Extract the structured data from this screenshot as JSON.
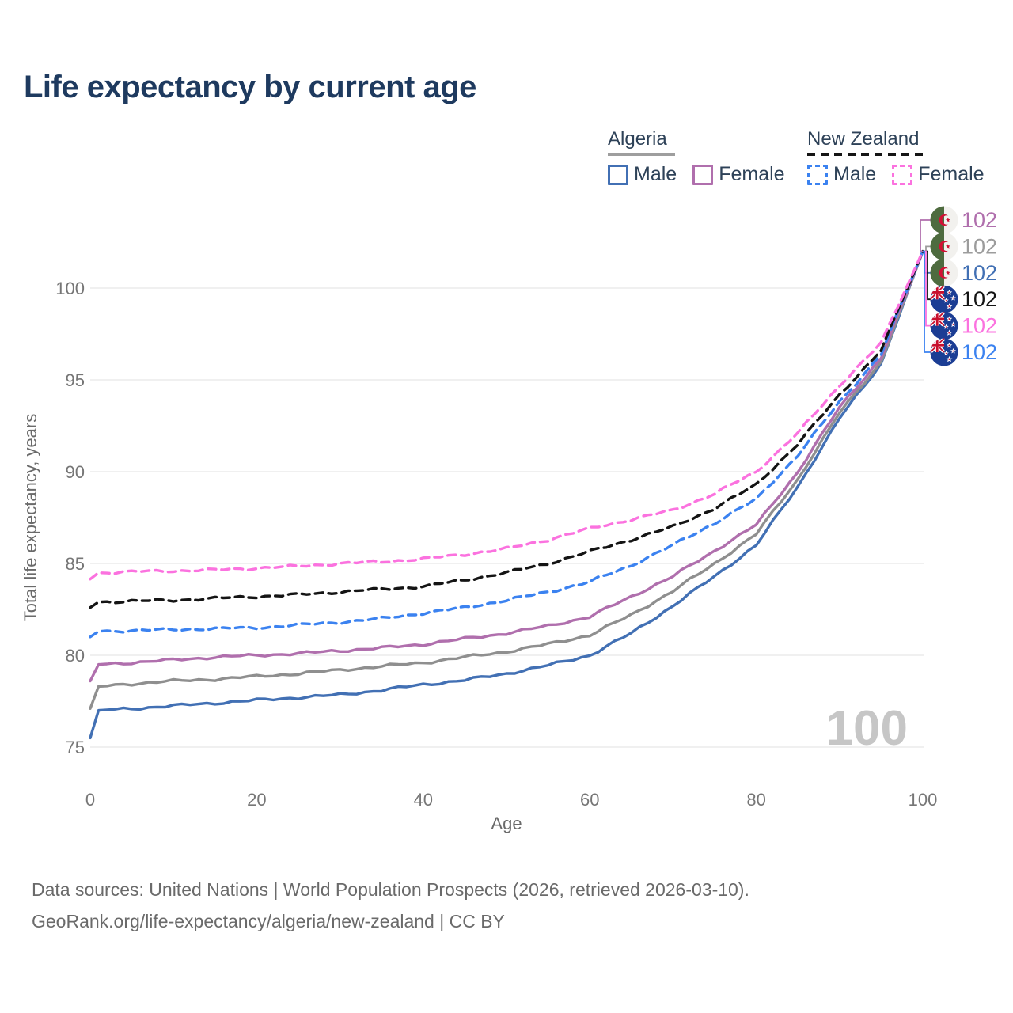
{
  "title": "Life expectancy by current age",
  "legend": {
    "groups": [
      {
        "label": "Algeria",
        "line_style": "solid",
        "underline_color": "#9e9e9e",
        "items": [
          {
            "label": "Male",
            "color": "#4270b4",
            "dash": false
          },
          {
            "label": "Female",
            "color": "#b06fad",
            "dash": false
          }
        ]
      },
      {
        "label": "New Zealand",
        "line_style": "dashed",
        "underline_color": "#151515",
        "items": [
          {
            "label": "Male",
            "color": "#3b82f0",
            "dash": true
          },
          {
            "label": "Female",
            "color": "#fb72df",
            "dash": true
          }
        ]
      }
    ]
  },
  "chart_data": {
    "type": "line",
    "title": "Life expectancy by current age",
    "xlabel": "Age",
    "ylabel": "Total life expectancy, years",
    "xlim": [
      0,
      100
    ],
    "ylim": [
      75,
      103
    ],
    "xticks": [
      0,
      20,
      40,
      60,
      80,
      100
    ],
    "yticks": [
      75,
      80,
      85,
      90,
      95,
      100
    ],
    "grid": "horizontal",
    "legend_position": "top-right",
    "watermark": "100",
    "x": [
      0,
      1,
      5,
      10,
      15,
      20,
      25,
      30,
      35,
      40,
      45,
      50,
      55,
      60,
      65,
      70,
      75,
      80,
      85,
      90,
      95,
      100
    ],
    "series": [
      {
        "name": "Algeria Male",
        "country": "Algeria",
        "sex": "male",
        "line": "solid",
        "color": "#4270b4",
        "end_label": "102",
        "values": [
          75.5,
          77.0,
          77.1,
          77.25,
          77.4,
          77.55,
          77.7,
          77.85,
          78.1,
          78.4,
          78.65,
          79.0,
          79.45,
          80.0,
          81.2,
          82.7,
          84.3,
          86.0,
          89.2,
          92.9,
          95.9,
          102
        ]
      },
      {
        "name": "Algeria Overall",
        "country": "Algeria",
        "sex": "both",
        "line": "solid",
        "color": "#8f8f8f",
        "end_label": "102",
        "values": [
          77.1,
          78.3,
          78.45,
          78.6,
          78.7,
          78.85,
          79.0,
          79.2,
          79.4,
          79.6,
          79.9,
          80.2,
          80.6,
          81.1,
          82.2,
          83.5,
          85.0,
          86.6,
          89.6,
          93.2,
          96.0,
          102
        ]
      },
      {
        "name": "Algeria Female",
        "country": "Algeria",
        "sex": "female",
        "line": "solid",
        "color": "#b06fad",
        "end_label": "102",
        "values": [
          78.6,
          79.5,
          79.6,
          79.75,
          79.9,
          80.0,
          80.1,
          80.25,
          80.4,
          80.6,
          80.9,
          81.2,
          81.6,
          82.1,
          83.2,
          84.3,
          85.7,
          87.1,
          90.0,
          93.5,
          96.2,
          102
        ]
      },
      {
        "name": "New Zealand Male",
        "country": "New Zealand",
        "sex": "male",
        "line": "dashed",
        "color": "#3b82f0",
        "end_label": "102",
        "values": [
          81.0,
          81.3,
          81.35,
          81.4,
          81.45,
          81.5,
          81.65,
          81.8,
          82.0,
          82.3,
          82.6,
          83.0,
          83.45,
          84.0,
          84.9,
          86.0,
          87.2,
          88.5,
          90.9,
          93.8,
          96.4,
          102
        ]
      },
      {
        "name": "New Zealand Overall",
        "country": "New Zealand",
        "sex": "both",
        "line": "dashed",
        "color": "#141414",
        "end_label": "102",
        "values": [
          82.6,
          82.9,
          82.95,
          83.0,
          83.1,
          83.2,
          83.3,
          83.45,
          83.6,
          83.75,
          84.1,
          84.5,
          85.0,
          85.65,
          86.3,
          87.0,
          88.0,
          89.3,
          91.5,
          94.2,
          96.6,
          102
        ]
      },
      {
        "name": "New Zealand Female",
        "country": "New Zealand",
        "sex": "female",
        "line": "dashed",
        "color": "#fb72df",
        "end_label": "102",
        "values": [
          84.15,
          84.5,
          84.55,
          84.6,
          84.65,
          84.75,
          84.85,
          85.0,
          85.1,
          85.25,
          85.5,
          85.8,
          86.3,
          86.9,
          87.4,
          87.9,
          88.8,
          90.0,
          92.1,
          94.7,
          97.0,
          102
        ]
      }
    ],
    "end_rows": [
      {
        "series": "Algeria Female",
        "flag": "algeria",
        "label": "102",
        "color": "#b06fad"
      },
      {
        "series": "Algeria Overall",
        "flag": "algeria",
        "label": "102",
        "color": "#9c9c9c"
      },
      {
        "series": "Algeria Male",
        "flag": "algeria",
        "label": "102",
        "color": "#4270b4"
      },
      {
        "series": "New Zealand Overall",
        "flag": "new-zealand",
        "label": "102",
        "color": "#141414"
      },
      {
        "series": "New Zealand Female",
        "flag": "new-zealand",
        "label": "102",
        "color": "#fb72df"
      },
      {
        "series": "New Zealand Male",
        "flag": "new-zealand",
        "label": "102",
        "color": "#3b82f0"
      }
    ],
    "flag_colors": {
      "algeria_green": "#4e6b3f",
      "algeria_white": "#f2f1ee",
      "algeria_red": "#d21034",
      "nz_blue": "#1b3d94",
      "nz_red": "#c8102e",
      "nz_white": "#ffffff"
    }
  },
  "source": {
    "line1": "Data sources: United Nations | World Population Prospects (2026, retrieved 2026-03-10).",
    "line2": "GeoRank.org/life-expectancy/algeria/new-zealand | CC BY"
  }
}
